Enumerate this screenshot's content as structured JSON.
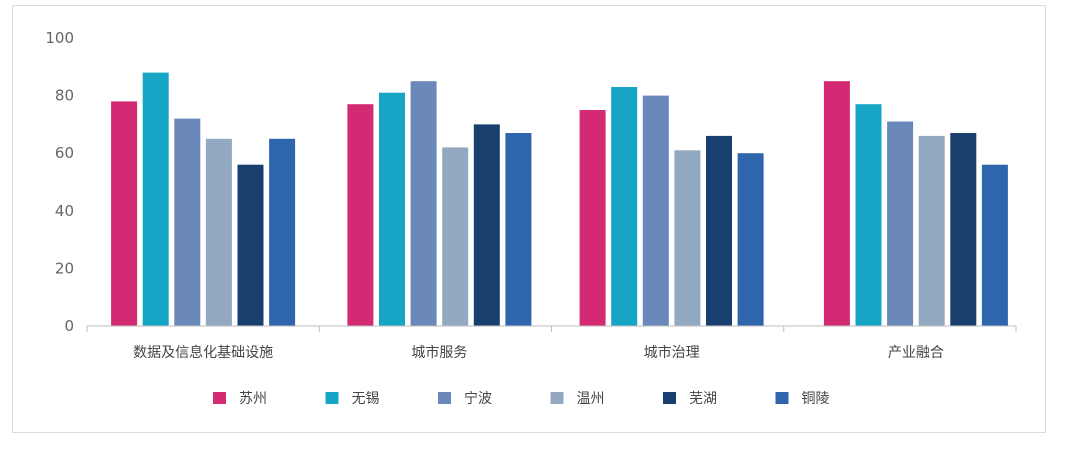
{
  "chart_data": {
    "type": "bar",
    "title": "",
    "xlabel": "",
    "ylabel": "",
    "ylim": [
      0,
      100
    ],
    "yticks": [
      0,
      20,
      40,
      60,
      80,
      100
    ],
    "grid": false,
    "legend_position": "bottom",
    "categories": [
      "数据及信息化基础设施",
      "城市服务",
      "城市治理",
      "产业融合"
    ],
    "series": [
      {
        "name": "苏州",
        "color": "#d42a73",
        "values": [
          78,
          77,
          75,
          85
        ]
      },
      {
        "name": "无锡",
        "color": "#17a5c6",
        "values": [
          88,
          81,
          83,
          77
        ]
      },
      {
        "name": "宁波",
        "color": "#6a88b9",
        "values": [
          72,
          85,
          80,
          71
        ]
      },
      {
        "name": "温州",
        "color": "#93a9c2",
        "values": [
          65,
          62,
          61,
          66
        ]
      },
      {
        "name": "芜湖",
        "color": "#183f6e",
        "values": [
          56,
          70,
          66,
          67
        ]
      },
      {
        "name": "铜陵",
        "color": "#2f65ac",
        "values": [
          65,
          67,
          60,
          56
        ]
      }
    ]
  }
}
